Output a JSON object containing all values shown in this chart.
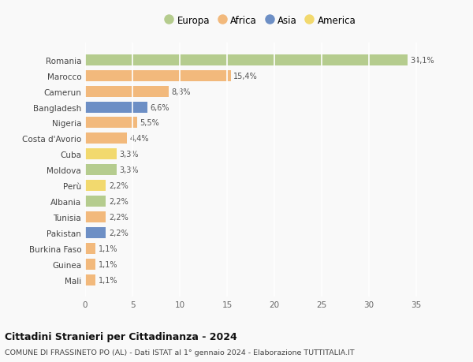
{
  "countries": [
    "Romania",
    "Marocco",
    "Camerun",
    "Bangladesh",
    "Nigeria",
    "Costa d'Avorio",
    "Cuba",
    "Moldova",
    "Perù",
    "Albania",
    "Tunisia",
    "Pakistan",
    "Burkina Faso",
    "Guinea",
    "Mali"
  ],
  "values": [
    34.1,
    15.4,
    8.8,
    6.6,
    5.5,
    4.4,
    3.3,
    3.3,
    2.2,
    2.2,
    2.2,
    2.2,
    1.1,
    1.1,
    1.1
  ],
  "labels": [
    "34,1%",
    "15,4%",
    "8,8%",
    "6,6%",
    "5,5%",
    "4,4%",
    "3,3%",
    "3,3%",
    "2,2%",
    "2,2%",
    "2,2%",
    "2,2%",
    "1,1%",
    "1,1%",
    "1,1%"
  ],
  "continents": [
    "Europa",
    "Africa",
    "Africa",
    "Asia",
    "Africa",
    "Africa",
    "America",
    "Europa",
    "America",
    "Europa",
    "Africa",
    "Asia",
    "Africa",
    "Africa",
    "Africa"
  ],
  "colors": {
    "Europa": "#b5cc8e",
    "Africa": "#f2b97c",
    "Asia": "#6d8fc5",
    "America": "#f2d96e"
  },
  "xlim": [
    0,
    37
  ],
  "xticks": [
    0,
    5,
    10,
    15,
    20,
    25,
    30,
    35
  ],
  "title": "Cittadini Stranieri per Cittadinanza - 2024",
  "subtitle": "COMUNE DI FRASSINETO PO (AL) - Dati ISTAT al 1° gennaio 2024 - Elaborazione TUTTITALIA.IT",
  "background_color": "#f9f9f9",
  "grid_color": "#ffffff",
  "bar_height": 0.7
}
